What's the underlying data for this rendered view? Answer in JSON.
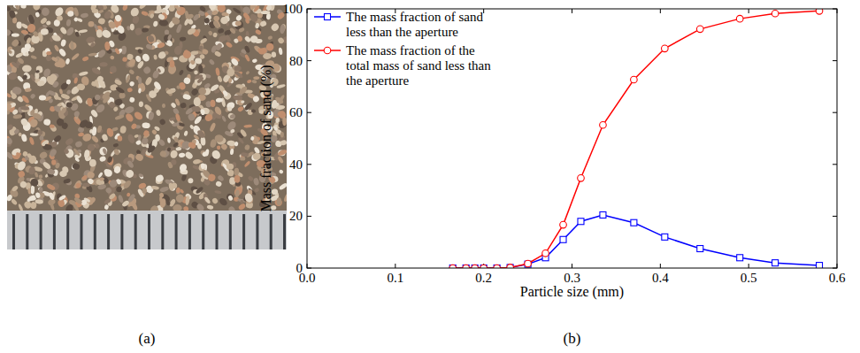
{
  "captions": [
    "(a)",
    "(b)"
  ],
  "chart_data": {
    "type": "line",
    "x_label": "Particle size (mm)",
    "y_label": "Mass fraction of sand (%)",
    "x": [
      0.165,
      0.18,
      0.19,
      0.2,
      0.215,
      0.23,
      0.25,
      0.27,
      0.29,
      0.31,
      0.335,
      0.37,
      0.405,
      0.445,
      0.49,
      0.53,
      0.58
    ],
    "series": [
      {
        "name": "The mass fraction of sand less than the aperture",
        "color": "#0000ff",
        "marker": "square",
        "line_style": "solid",
        "values": [
          0,
          0,
          0,
          0,
          0,
          0.2,
          1.5,
          4,
          11,
          18,
          20.5,
          17.5,
          12,
          7.5,
          4,
          2,
          1
        ]
      },
      {
        "name": "The mass fraction of the total mass of sand less than the aperture",
        "color": "#ff0000",
        "marker": "circle",
        "line_style": "solid",
        "values": [
          0,
          0,
          0,
          0,
          0,
          0.2,
          1.7,
          5.7,
          16.7,
          34.7,
          55.2,
          72.7,
          84.7,
          92.2,
          96.2,
          98.2,
          99.2
        ]
      }
    ],
    "xlim": [
      0,
      0.6
    ],
    "xticks": [
      {
        "value": 0,
        "label": "0.0"
      },
      0.1,
      0.2,
      0.3,
      0.4,
      0.5,
      0.6
    ],
    "ylim": [
      0,
      100
    ],
    "yticks": [
      0,
      20,
      40,
      60,
      80,
      100
    ],
    "grid": false,
    "legend": "upper left"
  }
}
